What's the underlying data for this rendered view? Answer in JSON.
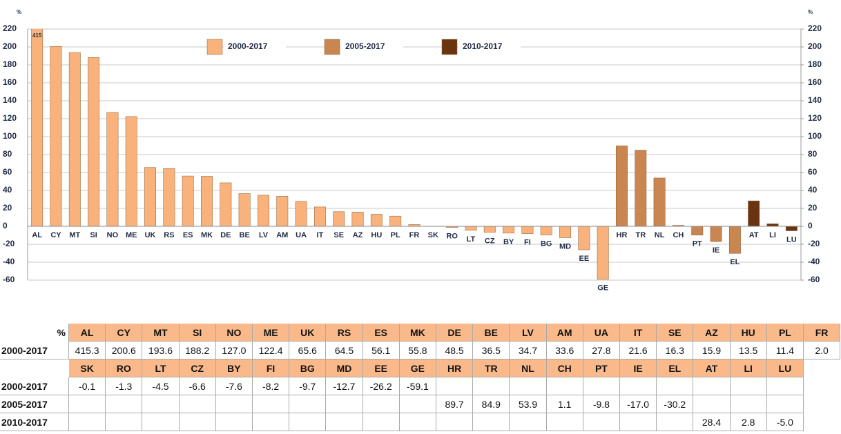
{
  "chart_data": {
    "type": "bar",
    "unit_label": "%",
    "categories": [
      "AL",
      "CY",
      "MT",
      "SI",
      "NO",
      "ME",
      "UK",
      "RS",
      "ES",
      "MK",
      "DE",
      "BE",
      "LV",
      "AM",
      "UA",
      "IT",
      "SE",
      "AZ",
      "HU",
      "PL",
      "FR",
      "SK",
      "RO",
      "LT",
      "CZ",
      "BY",
      "FI",
      "BG",
      "MD",
      "EE",
      "GE",
      "HR",
      "TR",
      "NL",
      "CH",
      "PT",
      "IE",
      "EL",
      "AT",
      "LI",
      "LU"
    ],
    "series": [
      {
        "name": "2000-2017",
        "color": "#f9b27c",
        "values": [
          415.3,
          200.6,
          193.6,
          188.2,
          127.0,
          122.4,
          65.6,
          64.5,
          56.1,
          55.8,
          48.5,
          36.5,
          34.7,
          33.6,
          27.8,
          21.6,
          16.3,
          15.9,
          13.5,
          11.4,
          2.0,
          -0.1,
          -1.3,
          -4.5,
          -6.6,
          -7.6,
          -8.2,
          -9.7,
          -12.7,
          -26.2,
          -59.1,
          null,
          null,
          null,
          null,
          null,
          null,
          null,
          null,
          null,
          null
        ],
        "value_labels": [
          "415",
          null,
          null,
          null,
          null,
          null,
          null,
          null,
          null,
          null,
          null,
          null,
          null,
          null,
          null,
          null,
          null,
          null,
          null,
          null,
          null,
          null,
          null,
          null,
          null,
          null,
          null,
          null,
          null,
          null,
          null,
          null,
          null,
          null,
          null,
          null,
          null,
          null,
          null,
          null,
          null
        ]
      },
      {
        "name": "2005-2017",
        "color": "#c98650",
        "values": [
          null,
          null,
          null,
          null,
          null,
          null,
          null,
          null,
          null,
          null,
          null,
          null,
          null,
          null,
          null,
          null,
          null,
          null,
          null,
          null,
          null,
          null,
          null,
          null,
          null,
          null,
          null,
          null,
          null,
          null,
          null,
          89.7,
          84.9,
          53.9,
          1.1,
          -9.8,
          -17.0,
          -30.2,
          null,
          null,
          null
        ]
      },
      {
        "name": "2010-2017",
        "color": "#6b3410",
        "values": [
          null,
          null,
          null,
          null,
          null,
          null,
          null,
          null,
          null,
          null,
          null,
          null,
          null,
          null,
          null,
          null,
          null,
          null,
          null,
          null,
          null,
          null,
          null,
          null,
          null,
          null,
          null,
          null,
          null,
          null,
          null,
          null,
          null,
          null,
          null,
          null,
          null,
          null,
          28.4,
          2.8,
          -5.0
        ]
      }
    ],
    "ylim": [
      -60,
      220
    ],
    "yticks": [
      -60,
      -40,
      -20,
      0,
      20,
      40,
      60,
      80,
      100,
      120,
      140,
      160,
      180,
      200,
      220
    ],
    "y2lim": [
      -60,
      220
    ],
    "y2ticks": [
      -60,
      -40,
      -20,
      0,
      20,
      40,
      60,
      80,
      100,
      120,
      140,
      160,
      180,
      200,
      220
    ],
    "grid": true,
    "legend": "top"
  },
  "table": {
    "rows": [
      [
        "%",
        "AL",
        "CY",
        "MT",
        "SI",
        "NO",
        "ME",
        "UK",
        "RS",
        "ES",
        "MK",
        "DE",
        "BE",
        "LV",
        "AM",
        "UA",
        "IT",
        "SE",
        "AZ",
        "HU",
        "PL",
        "FR"
      ],
      [
        "2000-2017",
        "415.3",
        "200.6",
        "193.6",
        "188.2",
        "127.0",
        "122.4",
        "65.6",
        "64.5",
        "56.1",
        "55.8",
        "48.5",
        "36.5",
        "34.7",
        "33.6",
        "27.8",
        "21.6",
        "16.3",
        "15.9",
        "13.5",
        "11.4",
        "2.0"
      ],
      [
        null,
        "SK",
        "RO",
        "LT",
        "CZ",
        "BY",
        "FI",
        "BG",
        "MD",
        "EE",
        "GE",
        "HR",
        "TR",
        "NL",
        "CH",
        "PT",
        "IE",
        "EL",
        "AT",
        "LI",
        "LU"
      ],
      [
        "2000-2017",
        "-0.1",
        "-1.3",
        "-4.5",
        "-6.6",
        "-7.6",
        "-8.2",
        "-9.7",
        "-12.7",
        "-26.2",
        "-59.1",
        null,
        null,
        null,
        null,
        null,
        null,
        null,
        null,
        null,
        null
      ],
      [
        "2005-2017",
        null,
        null,
        null,
        null,
        null,
        null,
        null,
        null,
        null,
        null,
        "89.7",
        "84.9",
        "53.9",
        "1.1",
        "-9.8",
        "-17.0",
        "-30.2",
        null,
        null,
        null
      ],
      [
        "2010-2017",
        null,
        null,
        null,
        null,
        null,
        null,
        null,
        null,
        null,
        null,
        null,
        null,
        null,
        null,
        null,
        null,
        null,
        "28.4",
        "2.8",
        "-5.0"
      ]
    ]
  }
}
